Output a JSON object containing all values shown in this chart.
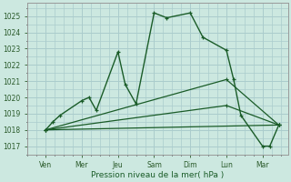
{
  "background_color": "#cce8e0",
  "grid_color": "#aacccc",
  "line_color": "#1a5c28",
  "x_labels": [
    "Ven",
    "Mer",
    "Jeu",
    "Sam",
    "Dim",
    "Lun",
    "Mar"
  ],
  "xlabel": "Pression niveau de la mer( hPa )",
  "ylim": [
    1016.5,
    1025.8
  ],
  "yticks": [
    1017,
    1018,
    1019,
    1020,
    1021,
    1022,
    1023,
    1024,
    1025
  ],
  "xlim": [
    -0.5,
    6.7
  ],
  "series": [
    {
      "x": [
        0.0,
        0.2,
        0.4,
        1.0,
        1.2,
        1.4,
        2.0,
        2.2,
        2.5,
        3.0,
        3.35,
        4.0,
        4.35,
        5.0,
        5.2,
        5.4,
        6.0,
        6.2,
        6.45
      ],
      "y": [
        1018.0,
        1018.5,
        1018.9,
        1019.8,
        1020.0,
        1019.2,
        1022.8,
        1020.8,
        1019.6,
        1025.2,
        1024.9,
        1025.2,
        1023.7,
        1022.9,
        1021.1,
        1018.9,
        1017.0,
        1017.0,
        1018.3
      ]
    },
    {
      "x": [
        0.0,
        6.45
      ],
      "y": [
        1018.0,
        1018.3
      ]
    },
    {
      "x": [
        0.0,
        5.0,
        6.45
      ],
      "y": [
        1018.0,
        1019.5,
        1018.3
      ]
    },
    {
      "x": [
        0.0,
        5.0,
        6.45
      ],
      "y": [
        1018.0,
        1021.1,
        1018.3
      ]
    }
  ]
}
